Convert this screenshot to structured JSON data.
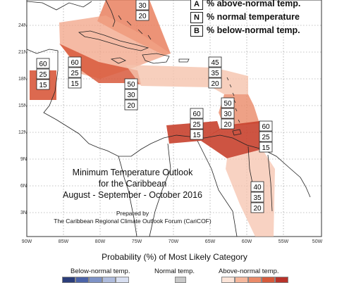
{
  "key": [
    {
      "letter": "A",
      "text": "% above-normal temp."
    },
    {
      "letter": "N",
      "text": "% normal temperature"
    },
    {
      "letter": "B",
      "text": "% below-normal temp."
    }
  ],
  "title": {
    "line1": "Minimum Temperature Outlook",
    "line2": "for the Caribbean",
    "line3": "August - September - October 2016",
    "prepared1": "Prepared by",
    "prepared2": "The Caribbean Regional Climate Outlook Forum (CariCOF)"
  },
  "axes": {
    "lat_labels": [
      "24N",
      "21N",
      "18N",
      "15N",
      "12N",
      "9N",
      "6N",
      "3N"
    ],
    "lon_labels": [
      "90W",
      "85W",
      "80W",
      "75W",
      "70W",
      "65W",
      "60W",
      "55W",
      "50W"
    ]
  },
  "regions": [
    {
      "id": "florida-bahamas",
      "a": "",
      "n": "30",
      "b": "20"
    },
    {
      "id": "belize",
      "a": "60",
      "n": "25",
      "b": "15"
    },
    {
      "id": "greater-antilles",
      "a": "60",
      "n": "25",
      "b": "15"
    },
    {
      "id": "jamaica-south",
      "a": "50",
      "n": "30",
      "b": "20"
    },
    {
      "id": "lesser-antilles-north",
      "a": "45",
      "n": "35",
      "b": "20"
    },
    {
      "id": "windward",
      "a": "50",
      "n": "30",
      "b": "20"
    },
    {
      "id": "venezuela-coast",
      "a": "60",
      "n": "25",
      "b": "15"
    },
    {
      "id": "trinidad-guyana",
      "a": "60",
      "n": "25",
      "b": "15"
    },
    {
      "id": "guianas",
      "a": "40",
      "n": "35",
      "b": "20"
    }
  ],
  "legend": {
    "title": "Probability (%) of Most Likely Category",
    "below_label": "Below-normal temp.",
    "normal_label": "Normal temp.",
    "above_label": "Above-normal temp.",
    "below_colors": [
      "#2b3d7a",
      "#4b63a8",
      "#7d92c6",
      "#aebbdc",
      "#d7def0"
    ],
    "normal_colors": [
      "#c8c8c8"
    ],
    "above_colors": [
      "#fbe4d8",
      "#f5b79c",
      "#ea8a68",
      "#d65a3b",
      "#b8322a"
    ]
  }
}
